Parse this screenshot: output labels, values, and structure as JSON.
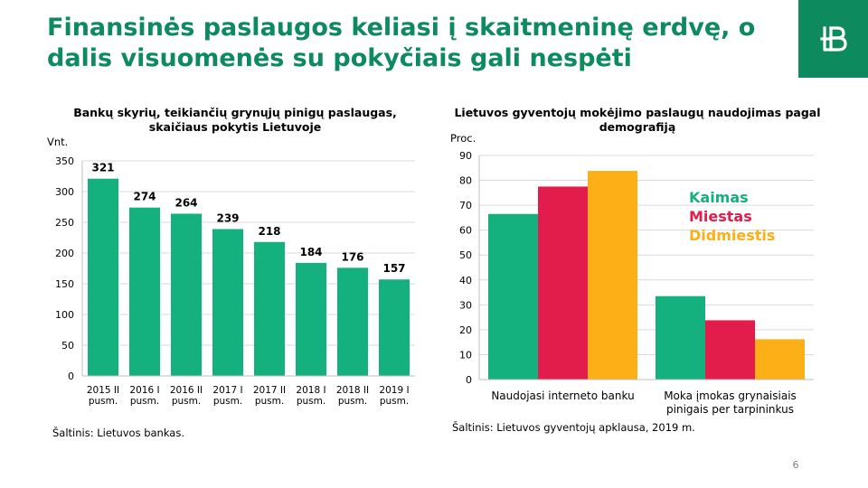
{
  "slide": {
    "title": "Finansinės paslaugos keliasi į skaitmeninę erdvę, o dalis visuomenės su pokyčiais gali nespėti",
    "page_number": "6",
    "logo_icon": "bank-of-lithuania-logo-icon",
    "colors": {
      "brand_green": "#0e8a5f",
      "bar_green": "#14b07e",
      "red": "#e31d4b",
      "orange": "#fdaf17"
    }
  },
  "chart_data": [
    {
      "type": "bar",
      "title": "Bankų skyrių, teikiančių grynųjų pinigų paslaugas, skaičiaus pokytis Lietuvoje",
      "ylabel": "Vnt.",
      "ylim": [
        0,
        350
      ],
      "yticks": [
        0,
        50,
        100,
        150,
        200,
        250,
        300,
        350
      ],
      "grid": true,
      "categories": [
        [
          "2015 II",
          "pusm."
        ],
        [
          "2016 I",
          "pusm."
        ],
        [
          "2016 II",
          "pusm."
        ],
        [
          "2017 I",
          "pusm."
        ],
        [
          "2017 II",
          "pusm."
        ],
        [
          "2018 I",
          "pusm."
        ],
        [
          "2018 II",
          "pusm."
        ],
        [
          "2019 I",
          "pusm."
        ]
      ],
      "values": [
        321,
        274,
        264,
        239,
        218,
        184,
        176,
        157
      ],
      "data_labels": true,
      "color": "#14b07e",
      "source": "Šaltinis: Lietuvos bankas."
    },
    {
      "type": "bar",
      "title": "Lietuvos gyventojų mokėjimo paslaugų naudojimas pagal demografiją",
      "ylabel": "Proc.",
      "ylim": [
        0,
        90
      ],
      "yticks": [
        0,
        10,
        20,
        30,
        40,
        50,
        60,
        70,
        80,
        90
      ],
      "grid": true,
      "categories": [
        [
          "Naudojasi interneto banku"
        ],
        [
          "Moka įmokas grynaisiais",
          "pinigais per tarpininkus"
        ]
      ],
      "series": [
        {
          "name": "Kaimas",
          "values": [
            66.5,
            33.5
          ],
          "color": "#14b07e"
        },
        {
          "name": "Miestas",
          "values": [
            77.5,
            23.8
          ],
          "color": "#e31d4b"
        },
        {
          "name": "Didmiestis",
          "values": [
            83.8,
            16.2
          ],
          "color": "#fdaf17"
        }
      ],
      "legend_placement": "top-right",
      "source": "Šaltinis: Lietuvos gyventojų apklausa, 2019 m."
    }
  ]
}
